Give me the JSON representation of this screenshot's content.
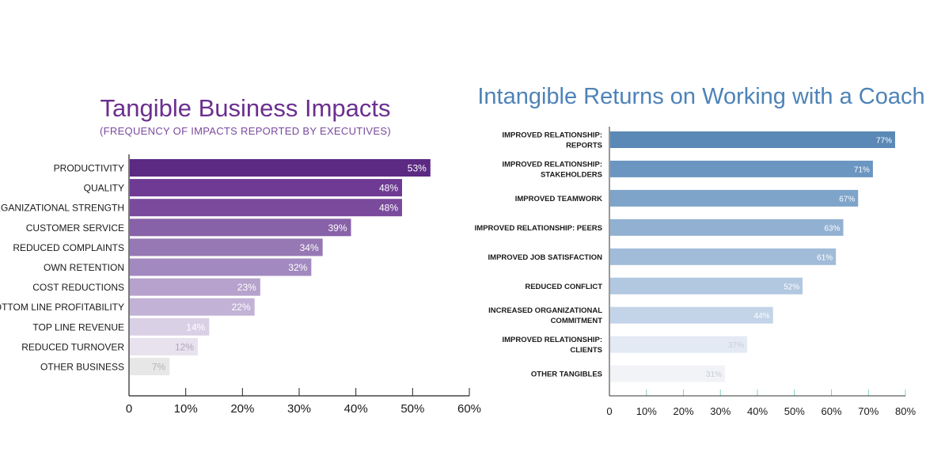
{
  "chart_data": [
    {
      "type": "bar",
      "orientation": "horizontal",
      "title": "Tangible Business Impacts",
      "subtitle": "(FREQUENCY OF IMPACTS REPORTED BY EXECUTIVES)",
      "categories": [
        "PRODUCTIVITY",
        "QUALITY",
        "ORGANIZATIONAL STRENGTH",
        "CUSTOMER SERVICE",
        "REDUCED COMPLAINTS",
        "OWN RETENTION",
        "COST REDUCTIONS",
        "BOTTOM LINE PROFITABILITY",
        "TOP LINE REVENUE",
        "REDUCED TURNOVER",
        "OTHER BUSINESS"
      ],
      "values": [
        53,
        48,
        48,
        39,
        34,
        32,
        23,
        22,
        14,
        12,
        7
      ],
      "value_labels": [
        "53%",
        "48%",
        "48%",
        "39%",
        "34%",
        "32%",
        "23%",
        "22%",
        "14%",
        "12%",
        "7%"
      ],
      "xlim": [
        0,
        60
      ],
      "xticks": [
        "0",
        "10%",
        "20%",
        "30%",
        "40%",
        "50%",
        "60%"
      ],
      "colors": [
        "#5c2a82",
        "#6e3a93",
        "#7a4a9c",
        "#8862a8",
        "#9678b4",
        "#a28ac0",
        "#b6a2cc",
        "#c2b2d6",
        "#dad0e6",
        "#e8e2ee",
        "#e7e7e7"
      ],
      "label_colors": [
        "#ffffff",
        "#ffffff",
        "#ffffff",
        "#ffffff",
        "#ffffff",
        "#ffffff",
        "#ffffff",
        "#ffffff",
        "#ffffff",
        "#b0a4bc",
        "#b4b4b4"
      ]
    },
    {
      "type": "bar",
      "orientation": "horizontal",
      "title": "Intangible Returns on Working with a Coach",
      "categories": [
        [
          "IMPROVED RELATIONSHIP:",
          "REPORTS"
        ],
        [
          "IMPROVED RELATIONSHIP:",
          "STAKEHOLDERS"
        ],
        [
          "IMPROVED TEAMWORK"
        ],
        [
          "IMPROVED RELATIONSHIP: PEERS"
        ],
        [
          "IMPROVED JOB SATISFACTION"
        ],
        [
          "REDUCED CONFLICT"
        ],
        [
          "INCREASED ORGANIZATIONAL",
          "COMMITMENT"
        ],
        [
          "IMPROVED RELATIONSHIP:",
          "CLIENTS"
        ],
        [
          "OTHER TANGIBLES"
        ]
      ],
      "values": [
        77,
        71,
        67,
        63,
        61,
        52,
        44,
        37,
        31
      ],
      "value_labels": [
        "77%",
        "71%",
        "67%",
        "63%",
        "61%",
        "52%",
        "44%",
        "37%",
        "31%"
      ],
      "xlim": [
        0,
        80
      ],
      "xticks": [
        "0",
        "10%",
        "20%",
        "30%",
        "40%",
        "50%",
        "60%",
        "70%",
        "80%"
      ],
      "colors": [
        "#5b89b7",
        "#6b96c1",
        "#7ea4ca",
        "#92b1d2",
        "#a1bcd9",
        "#b2c8e0",
        "#c3d4e8",
        "#e3eaf3",
        "#f1f3f6"
      ],
      "label_colors": [
        "#ffffff",
        "#ffffff",
        "#ffffff",
        "#ffffff",
        "#ffffff",
        "#ffffff",
        "#ffffff",
        "#c8cfd8",
        "#c8cdd4"
      ]
    }
  ]
}
